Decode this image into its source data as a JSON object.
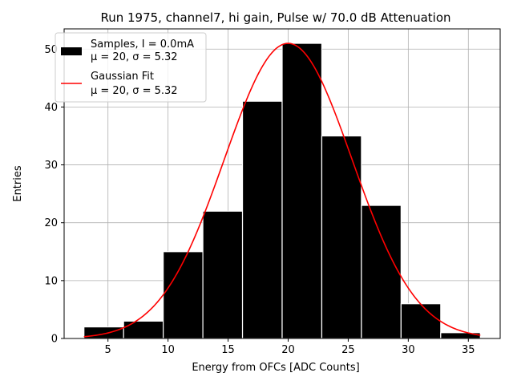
{
  "chart_data": {
    "type": "bar",
    "title": "Run 1975, channel7, hi gain, Pulse w/ 70.0 dB Attenuation",
    "xlabel": "Energy from OFCs [ADC Counts]",
    "ylabel": "Entries",
    "xlim": [
      1.35,
      37.65
    ],
    "ylim": [
      0,
      53.5
    ],
    "xticks": [
      5,
      10,
      15,
      20,
      25,
      30,
      35
    ],
    "yticks": [
      0,
      10,
      20,
      30,
      40,
      50
    ],
    "grid": true,
    "bins": [
      {
        "left": 3.0,
        "right": 6.3,
        "count": 2
      },
      {
        "left": 6.3,
        "right": 9.6,
        "count": 3
      },
      {
        "left": 9.6,
        "right": 12.9,
        "count": 15
      },
      {
        "left": 12.9,
        "right": 16.2,
        "count": 22
      },
      {
        "left": 16.2,
        "right": 19.5,
        "count": 41
      },
      {
        "left": 19.5,
        "right": 22.8,
        "count": 51
      },
      {
        "left": 22.8,
        "right": 26.1,
        "count": 35
      },
      {
        "left": 26.1,
        "right": 29.4,
        "count": 23
      },
      {
        "left": 29.4,
        "right": 32.7,
        "count": 6
      },
      {
        "left": 32.7,
        "right": 36.0,
        "count": 1
      }
    ],
    "fit": {
      "name": "Gaussian Fit",
      "mu": 20,
      "sigma": 5.32,
      "amplitude": 51,
      "x_range": [
        3,
        36
      ],
      "color": "#ff0000"
    },
    "bar_color": "#000000",
    "legend": {
      "position": "top-left",
      "entries": [
        {
          "line1": "Samples, I = 0.0mA",
          "line2": "μ = 20, σ = 5.32"
        },
        {
          "line1": "Gaussian Fit",
          "line2": "μ = 20, σ = 5.32"
        }
      ]
    }
  }
}
